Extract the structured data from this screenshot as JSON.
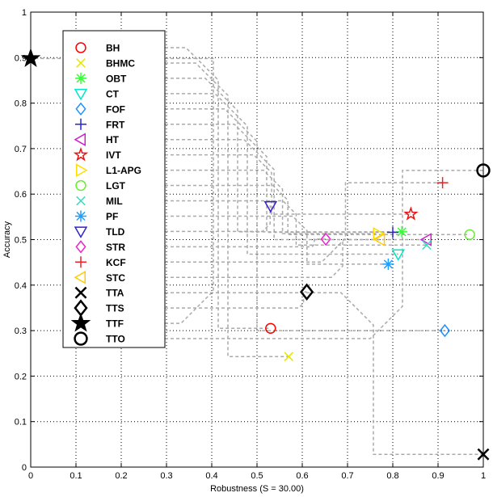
{
  "chart_data": {
    "type": "scatter",
    "title": "",
    "xlabel": "Robustness (S = 30.00)",
    "ylabel": "Accuracy",
    "xlim": [
      0,
      1
    ],
    "ylim": [
      0,
      1
    ],
    "xticks": [
      "0",
      "0.1",
      "0.2",
      "0.3",
      "0.4",
      "0.5",
      "0.6",
      "0.7",
      "0.8",
      "0.9",
      "1"
    ],
    "yticks": [
      "0",
      "0.1",
      "0.2",
      "0.3",
      "0.4",
      "0.5",
      "0.6",
      "0.7",
      "0.8",
      "0.9",
      "1"
    ],
    "grid": true,
    "legend_position": "upper-left",
    "series": [
      {
        "name": "BH",
        "marker": "circle",
        "color": "#ff0000",
        "x": 0.53,
        "y": 0.305
      },
      {
        "name": "BHMC",
        "marker": "x",
        "color": "#e6e600",
        "x": 0.57,
        "y": 0.243
      },
      {
        "name": "OBT",
        "marker": "asterisk",
        "color": "#33ff33",
        "x": 0.82,
        "y": 0.517
      },
      {
        "name": "CT",
        "marker": "triangle-down",
        "color": "#00e6c8",
        "x": 0.812,
        "y": 0.468
      },
      {
        "name": "FOF",
        "marker": "diamond",
        "color": "#1e90ff",
        "x": 0.915,
        "y": 0.3
      },
      {
        "name": "FRT",
        "marker": "plus",
        "color": "#2222ee",
        "x": 0.8,
        "y": 0.516
      },
      {
        "name": "HT",
        "marker": "triangle-left",
        "color": "#cc22cc",
        "x": 0.875,
        "y": 0.5
      },
      {
        "name": "IVT",
        "marker": "pentagram",
        "color": "#ee1111",
        "x": 0.84,
        "y": 0.556
      },
      {
        "name": "L1-APG",
        "marker": "triangle-right",
        "color": "#ffdd00",
        "x": 0.767,
        "y": 0.513
      },
      {
        "name": "LGT",
        "marker": "circle",
        "color": "#66ee33",
        "x": 0.97,
        "y": 0.511
      },
      {
        "name": "MIL",
        "marker": "x",
        "color": "#33ddbb",
        "x": 0.875,
        "y": 0.488
      },
      {
        "name": "PF",
        "marker": "asterisk",
        "color": "#1e9fff",
        "x": 0.79,
        "y": 0.446
      },
      {
        "name": "TLD",
        "marker": "triangle-down",
        "color": "#3322cc",
        "x": 0.53,
        "y": 0.574
      },
      {
        "name": "STR",
        "marker": "diamond",
        "color": "#ee22cc",
        "x": 0.652,
        "y": 0.501
      },
      {
        "name": "KCF",
        "marker": "plus",
        "color": "#ee2222",
        "x": 0.91,
        "y": 0.625
      },
      {
        "name": "STC",
        "marker": "triangle-left",
        "color": "#ffcc00",
        "x": 0.772,
        "y": 0.5
      },
      {
        "name": "TTA",
        "marker": "x",
        "color": "#000000",
        "x": 1.0,
        "y": 0.028
      },
      {
        "name": "TTS",
        "marker": "diamond",
        "color": "#000000",
        "x": 0.61,
        "y": 0.385
      },
      {
        "name": "TTF",
        "marker": "pentagram",
        "color": "#000000",
        "x": 0.0,
        "y": 0.898
      },
      {
        "name": "TTO",
        "marker": "circle",
        "color": "#000000",
        "x": 1.0,
        "y": 0.652
      }
    ],
    "colors": {
      "grid": "#000000",
      "leader_lines": "#aaaaaa",
      "axis": "#000000"
    }
  }
}
